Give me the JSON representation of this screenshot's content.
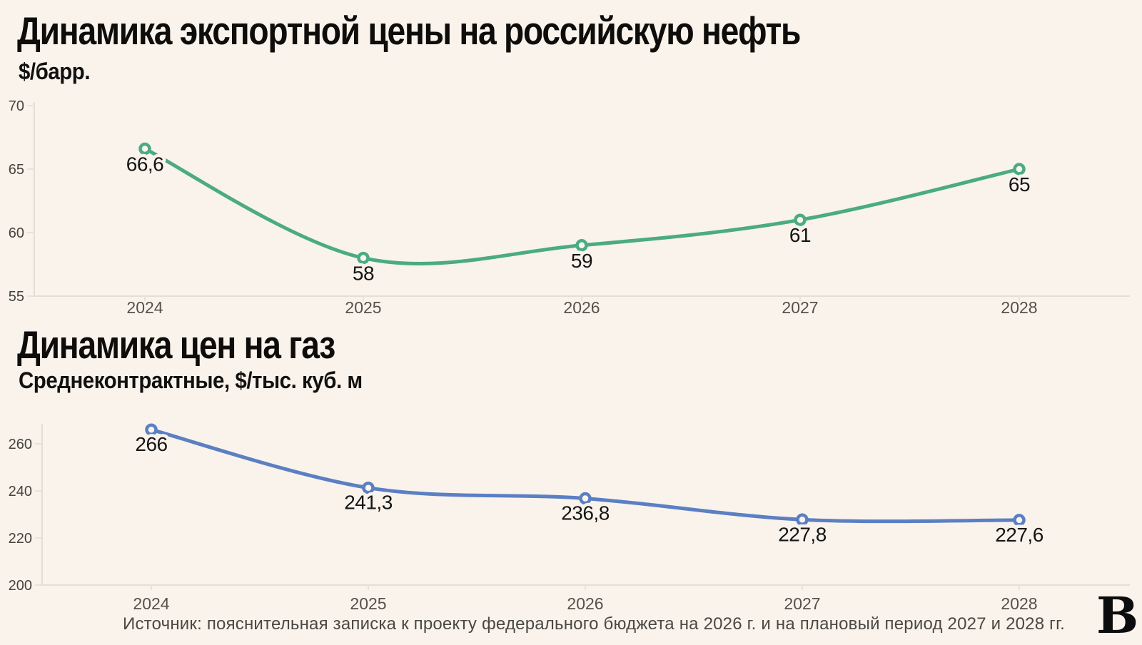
{
  "page_background": "#f9f3ec",
  "chart_data": [
    {
      "type": "line",
      "title": "Динамика экспортной цены на российскую нефть",
      "subtitle": "$/барр.",
      "categories": [
        "2024",
        "2025",
        "2026",
        "2027",
        "2028"
      ],
      "values": [
        66.6,
        58,
        59,
        61,
        65
      ],
      "point_labels": [
        "66,6",
        "58",
        "59",
        "61",
        "65"
      ],
      "y_ticks": [
        55,
        60,
        65,
        70
      ],
      "ylim": [
        55,
        70
      ],
      "line_color": "#4bab81",
      "marker_fill": "#faf5ee",
      "grid": "off",
      "legend": "none"
    },
    {
      "type": "line",
      "title": "Динамика цен на газ",
      "subtitle": "Среднеконтрактные, $/тыс. куб. м",
      "categories": [
        "2024",
        "2025",
        "2026",
        "2027",
        "2028"
      ],
      "values": [
        266,
        241.3,
        236.8,
        227.8,
        227.6
      ],
      "point_labels": [
        "266",
        "241,3",
        "236,8",
        "227,8",
        "227,6"
      ],
      "y_ticks": [
        200,
        220,
        240,
        260
      ],
      "ylim": [
        200,
        268
      ],
      "line_color": "#5b7fc3",
      "marker_fill": "#faf5ee",
      "grid": "off",
      "legend": "none"
    }
  ],
  "footer": {
    "source": "Источник: пояснительная записка к проекту федерального бюджета на 2026 г. и на плановый период 2027 и 2028 гг.",
    "logo": "В"
  }
}
